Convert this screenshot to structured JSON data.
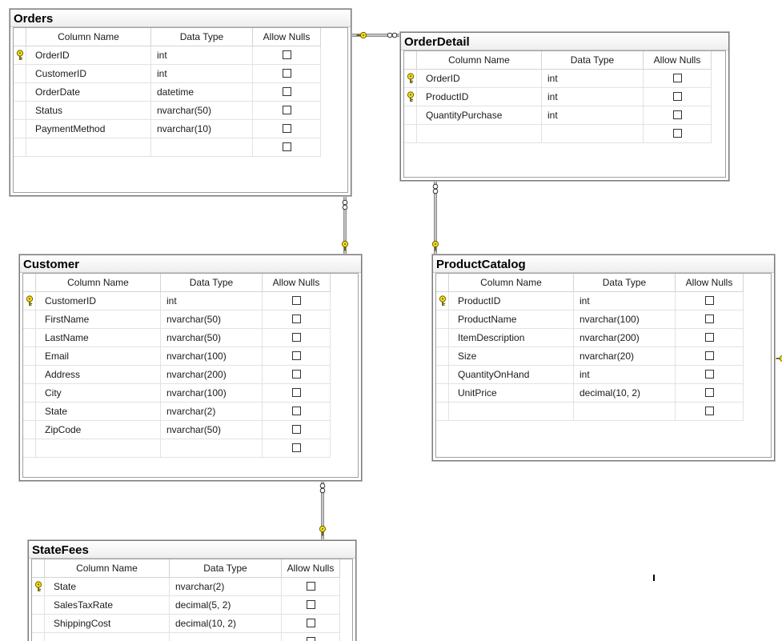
{
  "colors": {
    "pk_key_fill": "#f5e31a",
    "pk_key_stroke": "#6b5f00",
    "relationship_line": "#8c8c8c",
    "table_border": "#7a7a7a"
  },
  "icons": {
    "primary_key": "key-icon",
    "one_end": "key-icon",
    "many_end": "infinity-icon",
    "null_checkbox": "checkbox-icon"
  },
  "column_headers": {
    "name": "Column Name",
    "type": "Data Type",
    "nulls": "Allow Nulls"
  },
  "tables": {
    "orders": {
      "title": "Orders",
      "rows": [
        {
          "name": "OrderID",
          "type": "int",
          "pk": true
        },
        {
          "name": "CustomerID",
          "type": "int",
          "pk": false
        },
        {
          "name": "OrderDate",
          "type": "datetime",
          "pk": false
        },
        {
          "name": "Status",
          "type": "nvarchar(50)",
          "pk": false
        },
        {
          "name": "PaymentMethod",
          "type": "nvarchar(10)",
          "pk": false
        },
        {
          "name": "",
          "type": "",
          "pk": false
        }
      ]
    },
    "orderdetail": {
      "title": "OrderDetail",
      "rows": [
        {
          "name": "OrderID",
          "type": "int",
          "pk": true
        },
        {
          "name": "ProductID",
          "type": "int",
          "pk": true
        },
        {
          "name": "QuantityPurchase",
          "type": "int",
          "pk": false
        },
        {
          "name": "",
          "type": "",
          "pk": false
        }
      ]
    },
    "customer": {
      "title": "Customer",
      "rows": [
        {
          "name": "CustomerID",
          "type": "int",
          "pk": true
        },
        {
          "name": "FirstName",
          "type": "nvarchar(50)",
          "pk": false
        },
        {
          "name": "LastName",
          "type": "nvarchar(50)",
          "pk": false
        },
        {
          "name": "Email",
          "type": "nvarchar(100)",
          "pk": false
        },
        {
          "name": "Address",
          "type": "nvarchar(200)",
          "pk": false
        },
        {
          "name": "City",
          "type": "nvarchar(100)",
          "pk": false
        },
        {
          "name": "State",
          "type": "nvarchar(2)",
          "pk": false
        },
        {
          "name": "ZipCode",
          "type": "nvarchar(50)",
          "pk": false
        },
        {
          "name": "",
          "type": "",
          "pk": false
        }
      ]
    },
    "productcatalog": {
      "title": "ProductCatalog",
      "rows": [
        {
          "name": "ProductID",
          "type": "int",
          "pk": true
        },
        {
          "name": "ProductName",
          "type": "nvarchar(100)",
          "pk": false
        },
        {
          "name": "ItemDescription",
          "type": "nvarchar(200)",
          "pk": false
        },
        {
          "name": "Size",
          "type": "nvarchar(20)",
          "pk": false
        },
        {
          "name": "QuantityOnHand",
          "type": "int",
          "pk": false
        },
        {
          "name": "UnitPrice",
          "type": "decimal(10, 2)",
          "pk": false
        },
        {
          "name": "",
          "type": "",
          "pk": false
        }
      ]
    },
    "statefees": {
      "title": "StateFees",
      "rows": [
        {
          "name": "State",
          "type": "nvarchar(2)",
          "pk": true
        },
        {
          "name": "SalesTaxRate",
          "type": "decimal(5, 2)",
          "pk": false
        },
        {
          "name": "ShippingCost",
          "type": "decimal(10, 2)",
          "pk": false
        },
        {
          "name": "",
          "type": "",
          "pk": false
        }
      ]
    }
  },
  "relationships": [
    {
      "from": "Orders",
      "to": "OrderDetail",
      "one": "Orders",
      "many": "OrderDetail"
    },
    {
      "from": "Customer",
      "to": "Orders",
      "one": "Customer",
      "many": "Orders"
    },
    {
      "from": "ProductCatalog",
      "to": "OrderDetail",
      "one": "ProductCatalog",
      "many": "OrderDetail"
    },
    {
      "from": "StateFees",
      "to": "Customer",
      "one": "StateFees",
      "many": "Customer"
    }
  ]
}
